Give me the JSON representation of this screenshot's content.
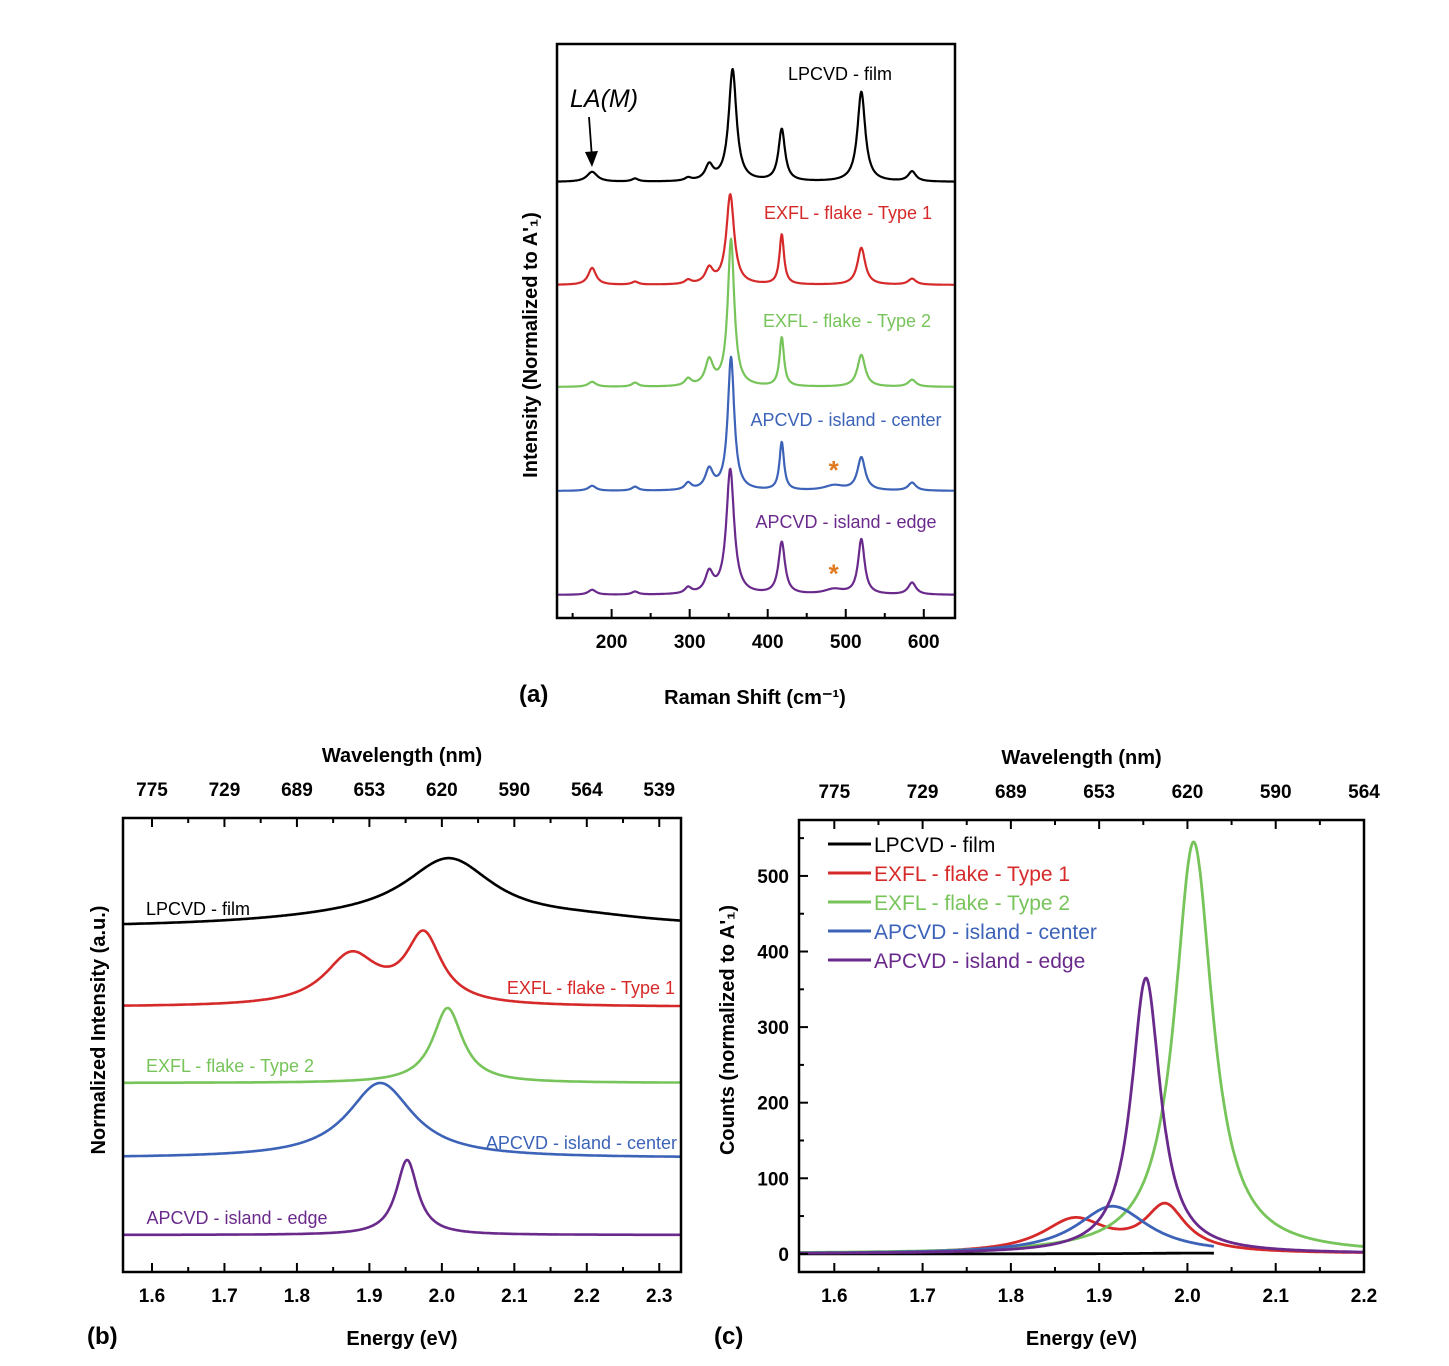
{
  "chart_data": [
    {
      "panel": "(a)",
      "type": "line",
      "xlabel": "Raman Shift (cm⁻¹)",
      "ylabel": "Intensity (Normalized to A'₁)",
      "xlim": [
        130,
        640
      ],
      "ylim": [
        0,
        5.74
      ],
      "xticks": [
        200,
        300,
        400,
        500,
        600
      ],
      "annotation": "LA(M)",
      "annotation_x": 178,
      "marker_text": "*",
      "marker_x": 482,
      "marker_color": "#e07a20",
      "shape": "lorentzian",
      "series": [
        {
          "name": "LPCVD - film",
          "color": "#000000",
          "offset": 4.36,
          "peaks": [
            [
              175,
              0.1,
              8
            ],
            [
              230,
              0.03,
              5
            ],
            [
              298,
              0.03,
              5
            ],
            [
              325,
              0.15,
              6
            ],
            [
              355,
              1.12,
              6
            ],
            [
              418,
              0.52,
              5
            ],
            [
              520,
              0.9,
              6
            ],
            [
              585,
              0.1,
              6
            ]
          ]
        },
        {
          "name": "EXFL - flake - Type 1",
          "color": "#d62a2a",
          "offset": 3.33,
          "peaks": [
            [
              175,
              0.17,
              6
            ],
            [
              230,
              0.03,
              5
            ],
            [
              298,
              0.04,
              5
            ],
            [
              325,
              0.15,
              6
            ],
            [
              352,
              0.9,
              6
            ],
            [
              418,
              0.5,
              3.5
            ],
            [
              520,
              0.37,
              6
            ],
            [
              585,
              0.06,
              6
            ]
          ]
        },
        {
          "name": "EXFL - flake - Type 2",
          "color": "#77c45a",
          "offset": 2.31,
          "peaks": [
            [
              175,
              0.05,
              6
            ],
            [
              230,
              0.04,
              5
            ],
            [
              298,
              0.07,
              5
            ],
            [
              325,
              0.25,
              6
            ],
            [
              353,
              1.47,
              5
            ],
            [
              418,
              0.49,
              3.5
            ],
            [
              520,
              0.32,
              6
            ],
            [
              585,
              0.07,
              6
            ]
          ]
        },
        {
          "name": "APCVD - island - center",
          "color": "#3c63b8",
          "offset": 1.27,
          "peaks": [
            [
              175,
              0.05,
              6
            ],
            [
              230,
              0.04,
              5
            ],
            [
              298,
              0.07,
              5
            ],
            [
              325,
              0.2,
              6
            ],
            [
              353,
              1.33,
              5
            ],
            [
              418,
              0.48,
              3.5
            ],
            [
              485,
              0.05,
              15
            ],
            [
              520,
              0.33,
              6
            ],
            [
              585,
              0.08,
              6
            ]
          ]
        },
        {
          "name": "APCVD - island - edge",
          "color": "#6a2a8c",
          "offset": 0.23,
          "peaks": [
            [
              175,
              0.05,
              6
            ],
            [
              230,
              0.03,
              5
            ],
            [
              298,
              0.06,
              5
            ],
            [
              325,
              0.2,
              6
            ],
            [
              352,
              1.25,
              6
            ],
            [
              418,
              0.52,
              5
            ],
            [
              485,
              0.05,
              15
            ],
            [
              520,
              0.55,
              5
            ],
            [
              585,
              0.12,
              6
            ]
          ]
        }
      ]
    },
    {
      "panel": "(b)",
      "type": "line",
      "xlabel": "Energy (eV)",
      "x2label": "Wavelength (nm)",
      "ylabel": "Normalized Intensity (a.u.)",
      "xlim": [
        1.56,
        2.33
      ],
      "ylim": [
        0,
        4.54
      ],
      "xticks": [
        1.6,
        1.7,
        1.8,
        1.9,
        2.0,
        2.1,
        2.2,
        2.3
      ],
      "x2ticks": [
        "775",
        "729",
        "689",
        "653",
        "620",
        "590",
        "564",
        "539"
      ],
      "shape": "lorentzian",
      "series": [
        {
          "name": "LPCVD - film",
          "color": "#000000",
          "offset": 3.44,
          "peaks": [
            [
              2.01,
              0.62,
              0.075
            ],
            [
              1.9,
              0.08,
              0.2
            ],
            [
              2.2,
              0.06,
              0.12
            ]
          ]
        },
        {
          "name": "EXFL - flake - Type 1",
          "color": "#d62a2a",
          "offset": 2.65,
          "peaks": [
            [
              1.875,
              0.5,
              0.045
            ],
            [
              1.975,
              0.68,
              0.03
            ]
          ]
        },
        {
          "name": "EXFL - flake - Type 2",
          "color": "#77c45a",
          "offset": 1.89,
          "peaks": [
            [
              2.008,
              0.75,
              0.025
            ]
          ]
        },
        {
          "name": "APCVD - island - center",
          "color": "#3c63b8",
          "offset": 1.14,
          "peaks": [
            [
              1.915,
              0.75,
              0.055
            ]
          ]
        },
        {
          "name": "APCVD - island - edge",
          "color": "#6a2a8c",
          "offset": 0.37,
          "peaks": [
            [
              1.952,
              0.75,
              0.018
            ]
          ]
        }
      ]
    },
    {
      "panel": "(c)",
      "type": "line",
      "xlabel": "Energy (eV)",
      "x2label": "Wavelength (nm)",
      "ylabel": "Counts (normalized to A'₁)",
      "xlim": [
        1.56,
        2.2
      ],
      "ylim": [
        -24,
        574
      ],
      "xticks": [
        1.6,
        1.7,
        1.8,
        1.9,
        2.0,
        2.1,
        2.2
      ],
      "x2ticks": [
        "775",
        "729",
        "689",
        "653",
        "620",
        "590",
        "564"
      ],
      "yticks": [
        0,
        100,
        200,
        300,
        400,
        500
      ],
      "legend": "top-left",
      "shape": "lorentzian",
      "series": [
        {
          "name": "LPCVD - film",
          "color": "#000000",
          "offset": 0,
          "x_end": 2.03,
          "peaks": [
            [
              2.01,
              1,
              0.07
            ]
          ]
        },
        {
          "name": "EXFL - flake - Type 1",
          "color": "#d62a2a",
          "offset": 0,
          "peaks": [
            [
              1.872,
              44,
              0.045
            ],
            [
              1.975,
              60,
              0.028
            ]
          ]
        },
        {
          "name": "EXFL - flake - Type 2",
          "color": "#77c45a",
          "offset": 0,
          "peaks": [
            [
              2.007,
              545,
              0.026
            ]
          ]
        },
        {
          "name": "APCVD - island - center",
          "color": "#3c63b8",
          "offset": 0,
          "x_end": 2.03,
          "peaks": [
            [
              1.915,
              63,
              0.05
            ]
          ]
        },
        {
          "name": "APCVD - island - edge",
          "color": "#6a2a8c",
          "offset": 0,
          "peaks": [
            [
              1.953,
              365,
              0.02
            ]
          ]
        }
      ]
    }
  ]
}
